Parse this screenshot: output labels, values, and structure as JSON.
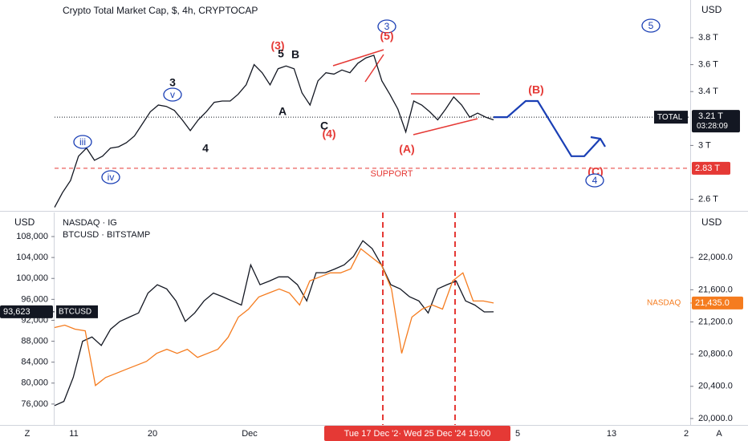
{
  "chart_data": [
    {
      "type": "line",
      "title": "Crypto Total Market Cap, $, 4h, CRYPTOCAP",
      "currency": "USD",
      "ylim": [
        2.52,
        4.08
      ],
      "yticks": [
        {
          "value": 2.6,
          "label": "2.6 T"
        },
        {
          "value": 3,
          "label": "3 T"
        },
        {
          "value": 3.4,
          "label": "3.4 T"
        },
        {
          "value": 3.6,
          "label": "3.6 T"
        },
        {
          "value": 3.8,
          "label": "3.8 T"
        }
      ],
      "series": [
        {
          "name": "TOTAL",
          "color": "#131722",
          "values": [
            2.54,
            2.65,
            2.74,
            2.92,
            2.98,
            2.89,
            2.92,
            2.98,
            2.99,
            3.02,
            3.07,
            3.16,
            3.25,
            3.3,
            3.29,
            3.26,
            3.19,
            3.11,
            3.19,
            3.25,
            3.32,
            3.33,
            3.33,
            3.38,
            3.45,
            3.6,
            3.54,
            3.45,
            3.57,
            3.59,
            3.57,
            3.39,
            3.3,
            3.48,
            3.54,
            3.53,
            3.56,
            3.54,
            3.61,
            3.65,
            3.67,
            3.48,
            3.38,
            3.27,
            3.1,
            3.33,
            3.3,
            3.25,
            3.19,
            3.27,
            3.36,
            3.3,
            3.21,
            3.24,
            3.21,
            3.19
          ]
        }
      ],
      "projection": {
        "color": "#1a3fb5",
        "values": [
          3.21,
          3.21,
          3.33,
          3.33,
          2.92,
          2.92,
          3.05
        ]
      },
      "last": {
        "value": 3.21,
        "label": "3.21 T",
        "timer": "03:28:09"
      },
      "support": {
        "value": 2.83,
        "label": "2.83 T",
        "text": "SUPPORT",
        "color": "#e53935"
      },
      "annotations": [
        "3",
        "v",
        "iii",
        "iv",
        "4",
        "(3)",
        "5",
        "B",
        "A",
        "C",
        "(4)",
        "3",
        "(5)",
        "(A)",
        "(B)",
        "(C)",
        "4",
        "5"
      ]
    },
    {
      "type": "line",
      "currency": "USD",
      "legend": [
        "NASDAQ · IG",
        "BTCUSD · BITSTAMP"
      ],
      "ylim": [
        72000,
        112600
      ],
      "y2lim": [
        19920,
        22560
      ],
      "yticks": [
        {
          "value": 76000,
          "label": "76,000"
        },
        {
          "value": 80000,
          "label": "80,000"
        },
        {
          "value": 84000,
          "label": "84,000"
        },
        {
          "value": 88000,
          "label": "88,000"
        },
        {
          "value": 92000,
          "label": "92,000"
        },
        {
          "value": 96000,
          "label": "96,000"
        },
        {
          "value": 100000,
          "label": "100,000"
        },
        {
          "value": 104000,
          "label": "104,000"
        },
        {
          "value": 108000,
          "label": "108,000"
        }
      ],
      "y2ticks": [
        {
          "value": 20000,
          "label": "20,000.0"
        },
        {
          "value": 20400,
          "label": "20,400.0"
        },
        {
          "value": 20800,
          "label": "20,800.0"
        },
        {
          "value": 21200,
          "label": "21,200.0"
        },
        {
          "value": 21600,
          "label": "21,600.0"
        },
        {
          "value": 22000,
          "label": "22,000.0"
        }
      ],
      "series": [
        {
          "name": "BTCUSD",
          "color": "#131722",
          "last": {
            "value": 93623,
            "label": "93,623"
          },
          "values": [
            75700,
            76500,
            81100,
            88000,
            88800,
            87200,
            90300,
            91800,
            92600,
            93400,
            97200,
            98800,
            98000,
            95700,
            91800,
            93400,
            95700,
            97200,
            96500,
            95700,
            94900,
            102600,
            98800,
            99500,
            100300,
            100300,
            98800,
            95700,
            101100,
            101100,
            101800,
            102600,
            104200,
            107200,
            105700,
            102600,
            98800,
            98000,
            96500,
            95700,
            93400,
            98000,
            98800,
            99500,
            95700,
            94900,
            93600,
            93623
          ]
        },
        {
          "name": "NASDAQ",
          "color": "#f57c1f",
          "axis": "y2",
          "last": {
            "value": 21435,
            "label": "21,435.0"
          },
          "values": [
            21130,
            21160,
            21110,
            21090,
            20410,
            20510,
            20560,
            20610,
            20660,
            20710,
            20810,
            20860,
            20810,
            20860,
            20760,
            20810,
            20860,
            21010,
            21260,
            21360,
            21510,
            21560,
            21610,
            21560,
            21410,
            21710,
            21760,
            21810,
            21810,
            21860,
            22110,
            22010,
            21910,
            21610,
            20810,
            21260,
            21360,
            21410,
            21360,
            21710,
            21810,
            21460,
            21460,
            21435
          ]
        }
      ]
    }
  ],
  "x_axis": {
    "labels": [
      "11",
      "20",
      "Dec",
      "5",
      "13",
      "2"
    ],
    "crosshair": "Tue 17 Dec '2· Wed 25 Dec '24  19:00"
  },
  "corner": {
    "left": "Z",
    "right": "A"
  }
}
